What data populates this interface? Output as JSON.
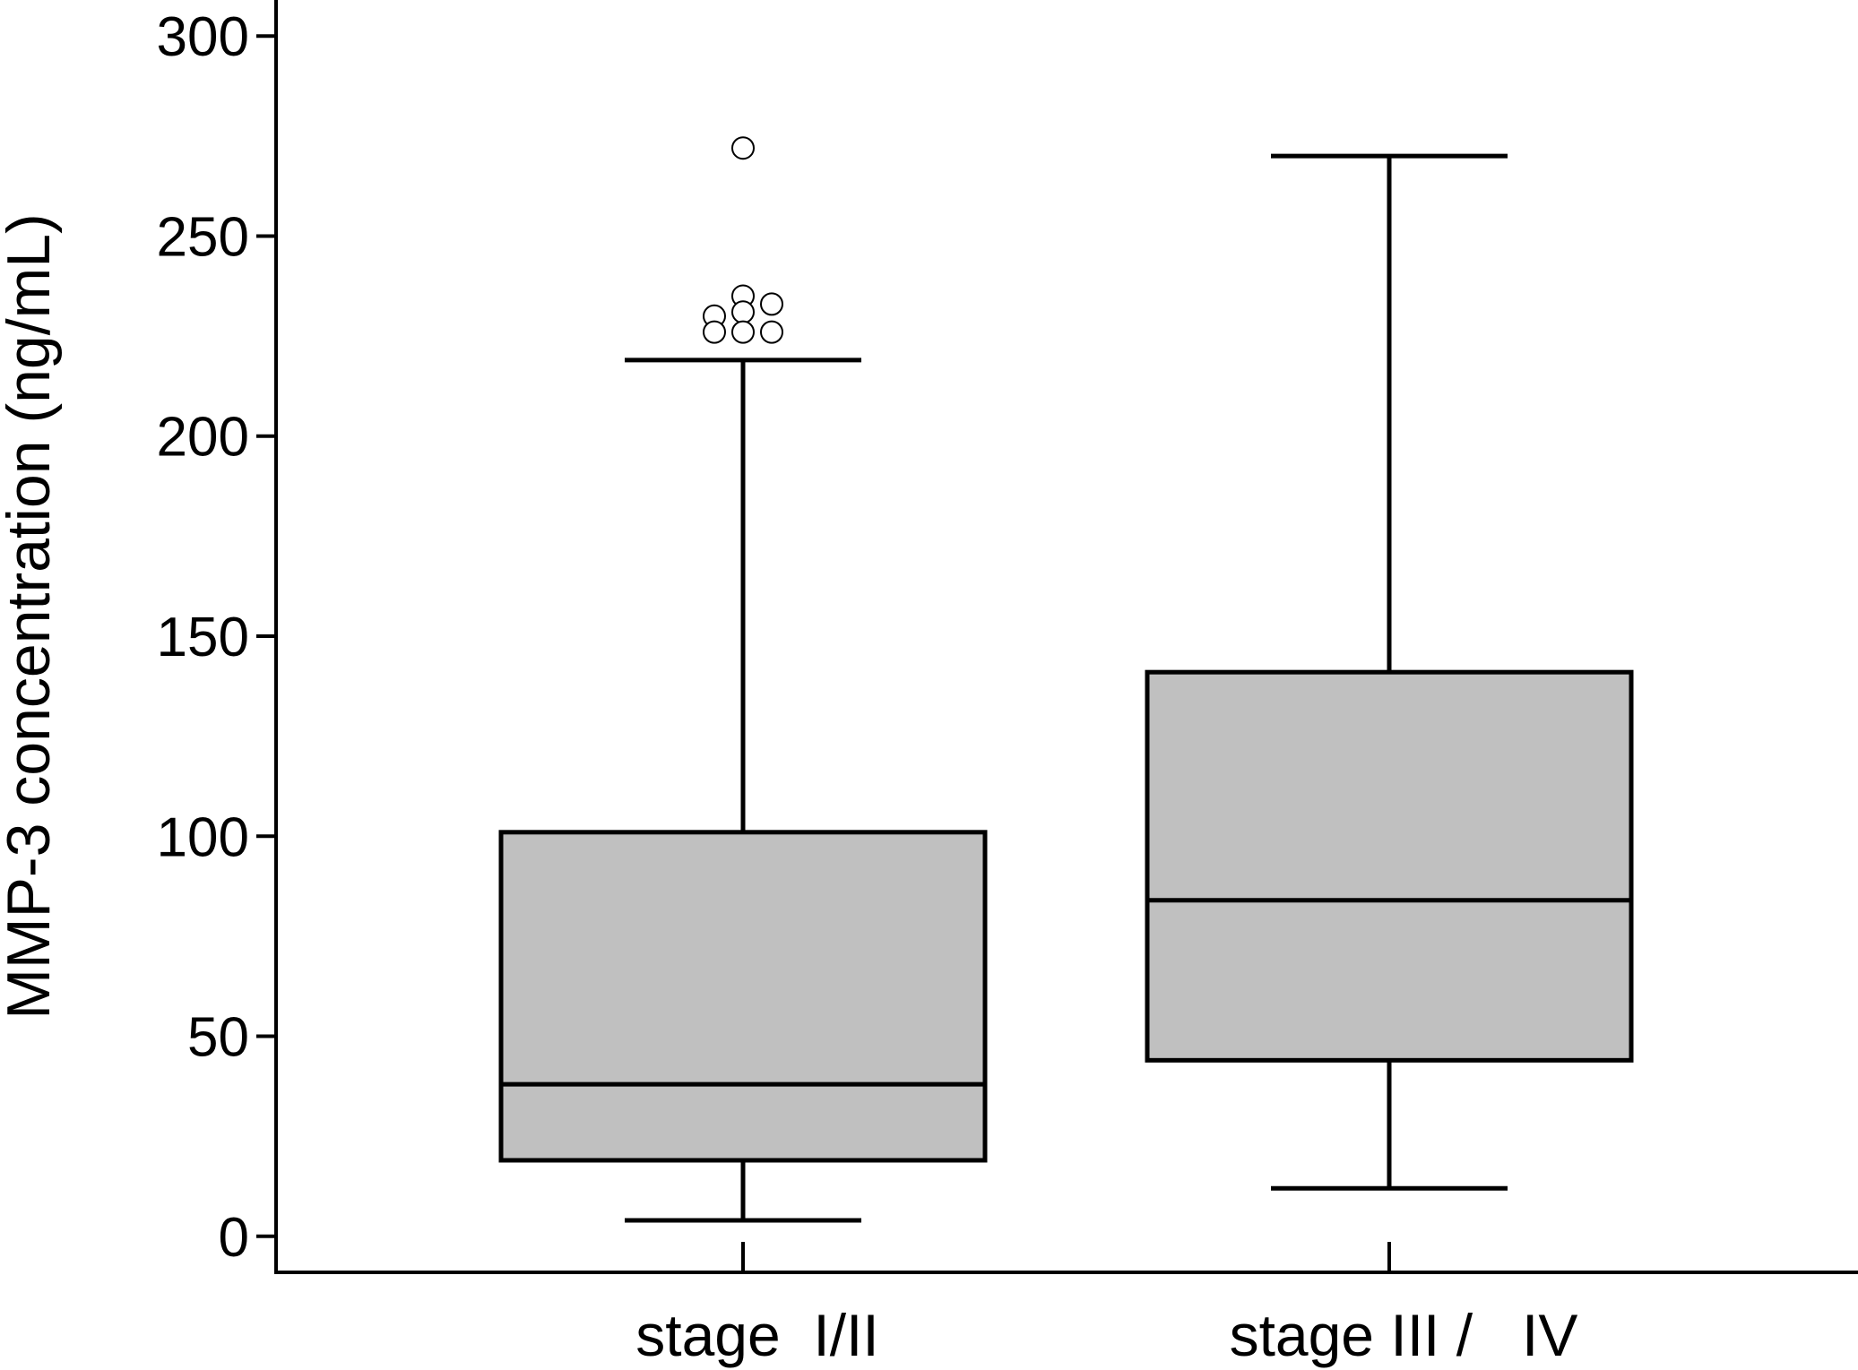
{
  "chart_data": {
    "type": "box",
    "title": "",
    "xlabel": "",
    "ylabel": "MMP-3 concentration (ng/mL)",
    "ylim": [
      -9,
      309
    ],
    "yticks": [
      0,
      50,
      100,
      150,
      200,
      250,
      300
    ],
    "grid": false,
    "colors": {
      "box_fill": "#c0c0c0",
      "stroke": "#000000",
      "outlier_fill": "#ffffff"
    },
    "categories": [
      "stage  I/II",
      "stage III /   IV"
    ],
    "boxes": [
      {
        "category": "stage  I/II",
        "whisker_low": 4,
        "q1": 19,
        "median": 38,
        "q3": 101,
        "whisker_high": 219,
        "outliers": [
          272,
          235,
          233,
          231,
          230,
          226,
          226,
          226
        ]
      },
      {
        "category": "stage III /   IV",
        "whisker_low": 12,
        "q1": 44,
        "median": 84,
        "q3": 141,
        "whisker_high": 270,
        "outliers": []
      }
    ]
  }
}
